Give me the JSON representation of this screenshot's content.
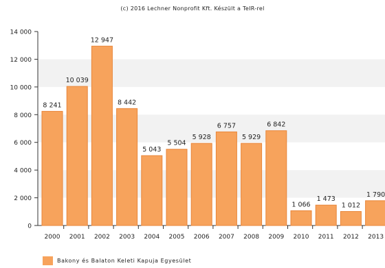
{
  "credit": "(c) 2016 Lechner Nonprofit Kft. Készült a TeIR-rel",
  "legend": {
    "label": "Bakony és Balaton Keleti Kapuja Egyesület",
    "color": "#f7a35c"
  },
  "chart_data": {
    "type": "bar",
    "categories": [
      "2000",
      "2001",
      "2002",
      "2003",
      "2004",
      "2005",
      "2006",
      "2007",
      "2008",
      "2009",
      "2010",
      "2011",
      "2012",
      "2013"
    ],
    "series": [
      {
        "name": "Bakony és Balaton Keleti Kapuja Egyesület",
        "values": [
          8241,
          10039,
          12947,
          8442,
          5043,
          5504,
          5928,
          6757,
          5929,
          6842,
          1066,
          1473,
          1012,
          1790
        ]
      }
    ],
    "data_labels": [
      "8 241",
      "10 039",
      "12 947",
      "8 442",
      "5 043",
      "5 504",
      "5 928",
      "6 757",
      "5 929",
      "6 842",
      "1 066",
      "1 473",
      "1 012",
      "1 790"
    ],
    "yticks": [
      0,
      2000,
      4000,
      6000,
      8000,
      10000,
      12000,
      14000
    ],
    "ytick_labels": [
      "0",
      "2 000",
      "4 000",
      "6 000",
      "8 000",
      "10 000",
      "12 000",
      "14 000"
    ],
    "ylim": [
      0,
      14000
    ],
    "grid": true,
    "legend_position": "bottom-left",
    "colors": {
      "bar": "#f7a35c",
      "bar_stroke": "#e8863a",
      "band": "#f2f2f2"
    }
  }
}
